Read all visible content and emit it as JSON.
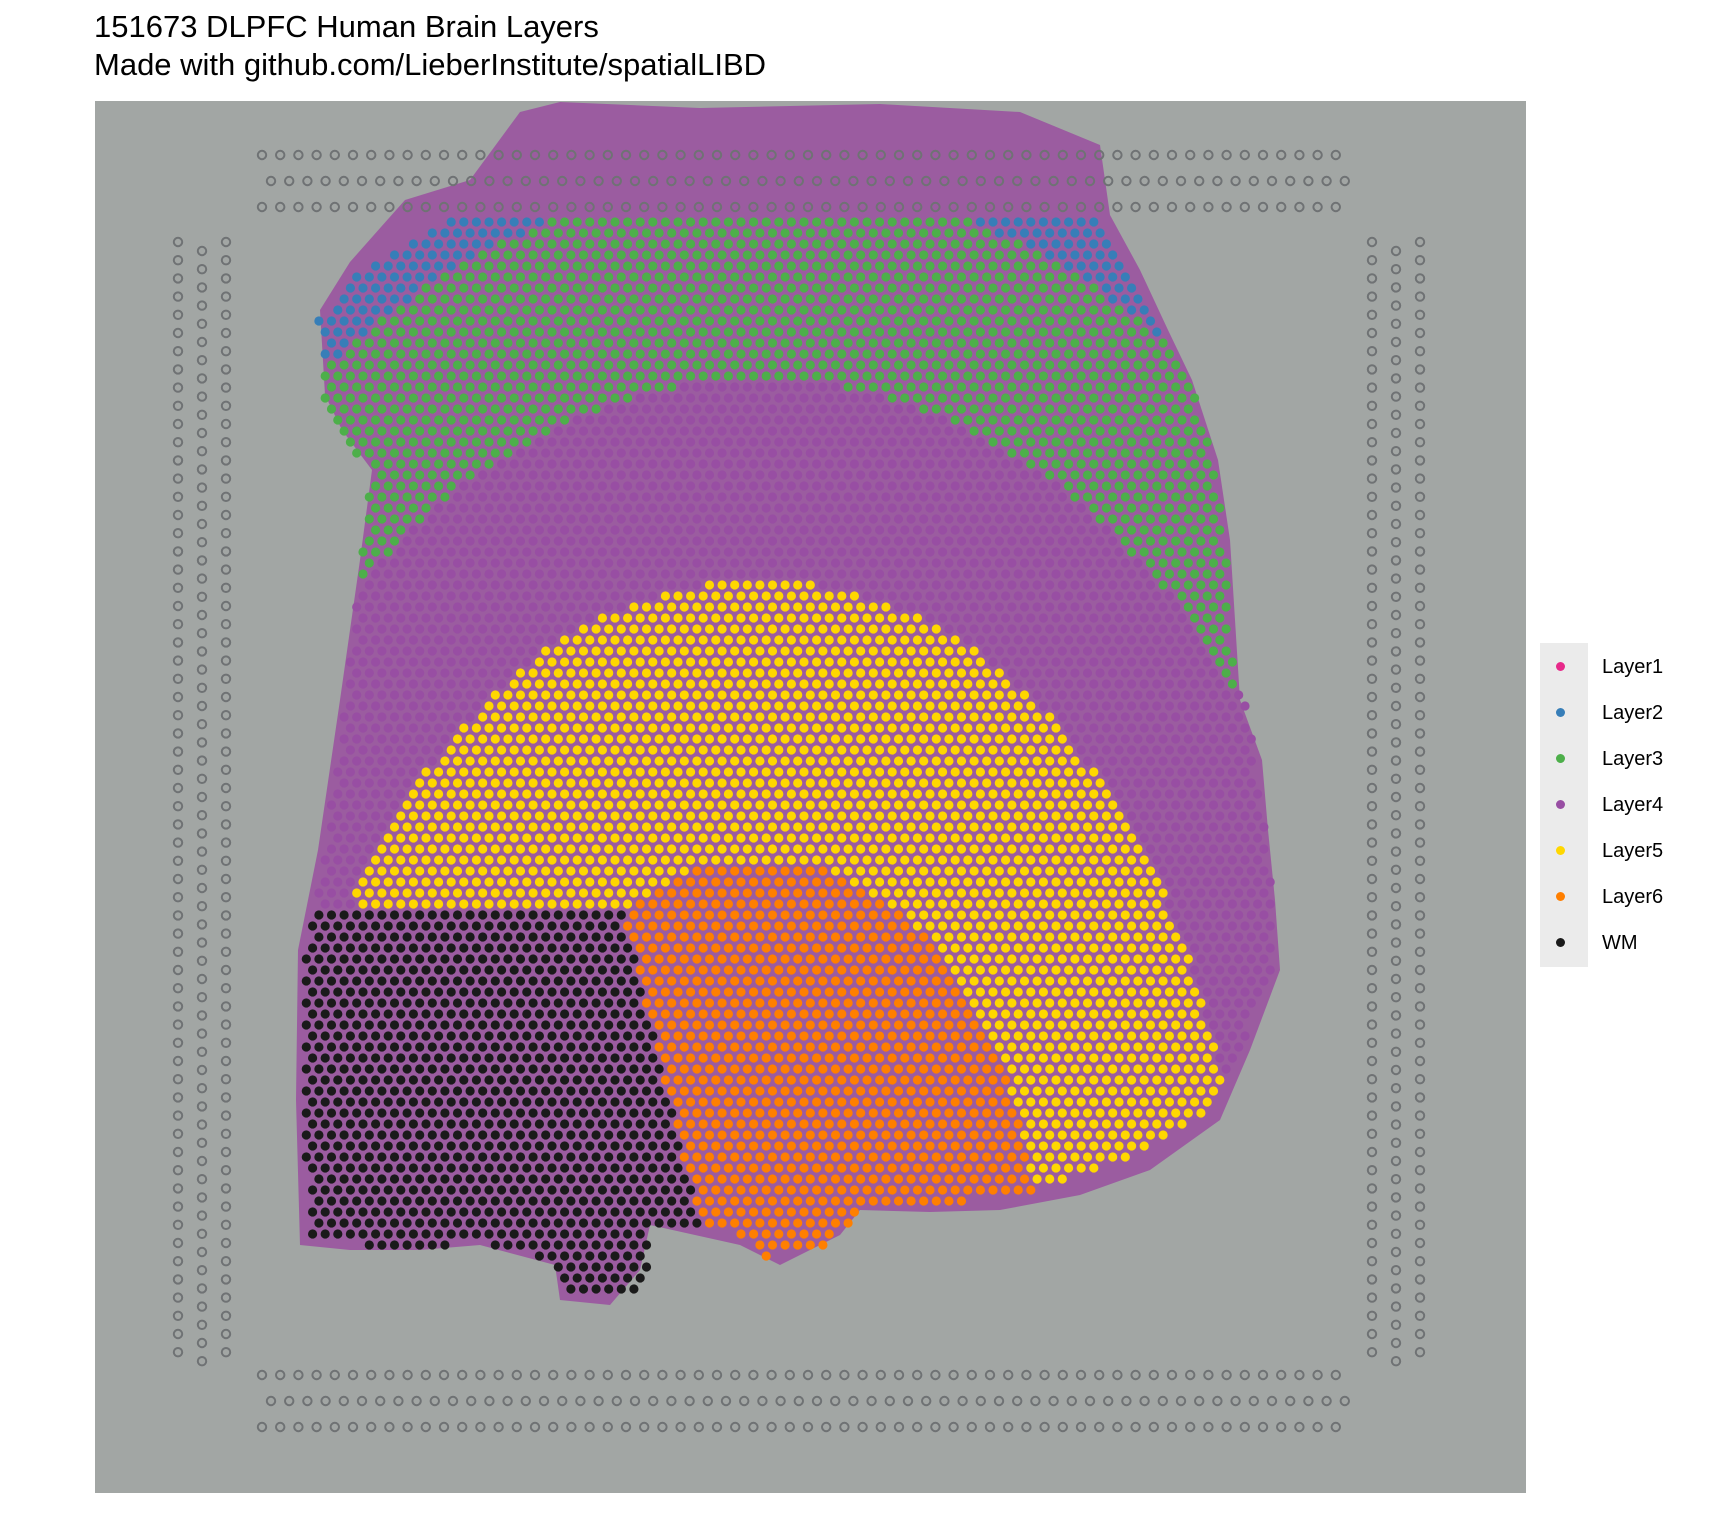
{
  "title": {
    "line1": "151673 DLPFC Human Brain Layers",
    "line2": "Made with github.com/LieberInstitute/spatialLIBD"
  },
  "legend": {
    "items": [
      {
        "label": "Layer1",
        "color": "#e7298a"
      },
      {
        "label": "Layer2",
        "color": "#377eb8"
      },
      {
        "label": "Layer3",
        "color": "#4daf4a"
      },
      {
        "label": "Layer4",
        "color": "#984ea3"
      },
      {
        "label": "Layer5",
        "color": "#ffd700"
      },
      {
        "label": "Layer6",
        "color": "#ff7f00"
      },
      {
        "label": "WM",
        "color": "#1a1a1a"
      }
    ]
  },
  "colors": {
    "background": "#a2a6a4",
    "tissue": "#9a4fa0",
    "fiducial": "#6f7274"
  }
}
